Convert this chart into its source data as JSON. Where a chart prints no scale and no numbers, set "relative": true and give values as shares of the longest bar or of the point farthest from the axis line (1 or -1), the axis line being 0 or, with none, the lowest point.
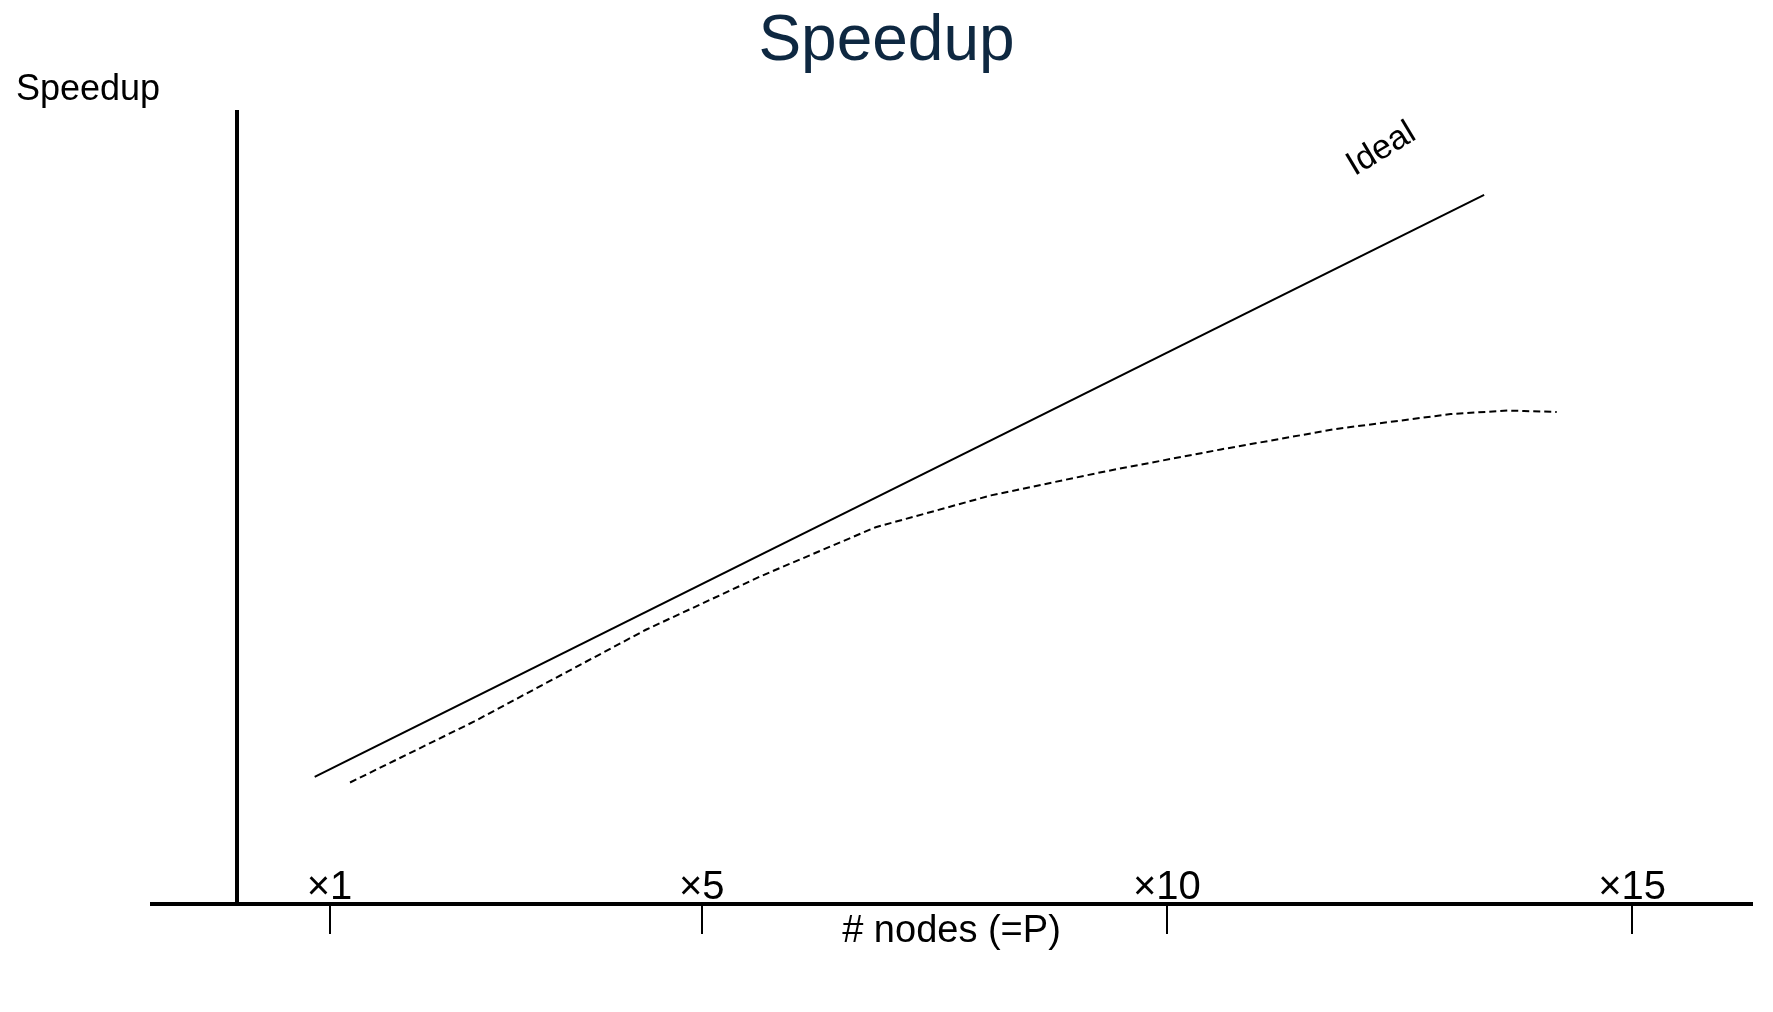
{
  "chart_data": {
    "type": "line",
    "title": "Speedup",
    "xlabel": "# nodes (=P)",
    "ylabel": "Speedup",
    "relative": true,
    "xlim": [
      -0.93,
      16.3
    ],
    "xticks": [
      {
        "value": 1,
        "label": "×1"
      },
      {
        "value": 5,
        "label": "×5"
      },
      {
        "value": 10,
        "label": "×10"
      },
      {
        "value": 15,
        "label": "×15"
      }
    ],
    "series": [
      {
        "name": "Ideal",
        "color": "#000000",
        "line_style": "solid",
        "x": [
          0.84,
          13.41
        ],
        "values": [
          0.177,
          1
        ]
      },
      {
        "color": "#000000",
        "line_style": "dashed",
        "x": [
          1.22,
          2.55,
          4.4,
          5.64,
          6.87,
          8.11,
          9.34,
          10.58,
          11.82,
          13.05,
          13.66,
          14.19
        ],
        "values": [
          0.169,
          0.255,
          0.385,
          0.461,
          0.53,
          0.575,
          0.609,
          0.64,
          0.669,
          0.69,
          0.695,
          0.693
        ]
      }
    ],
    "grid": false,
    "legend": false,
    "marker": "none"
  }
}
